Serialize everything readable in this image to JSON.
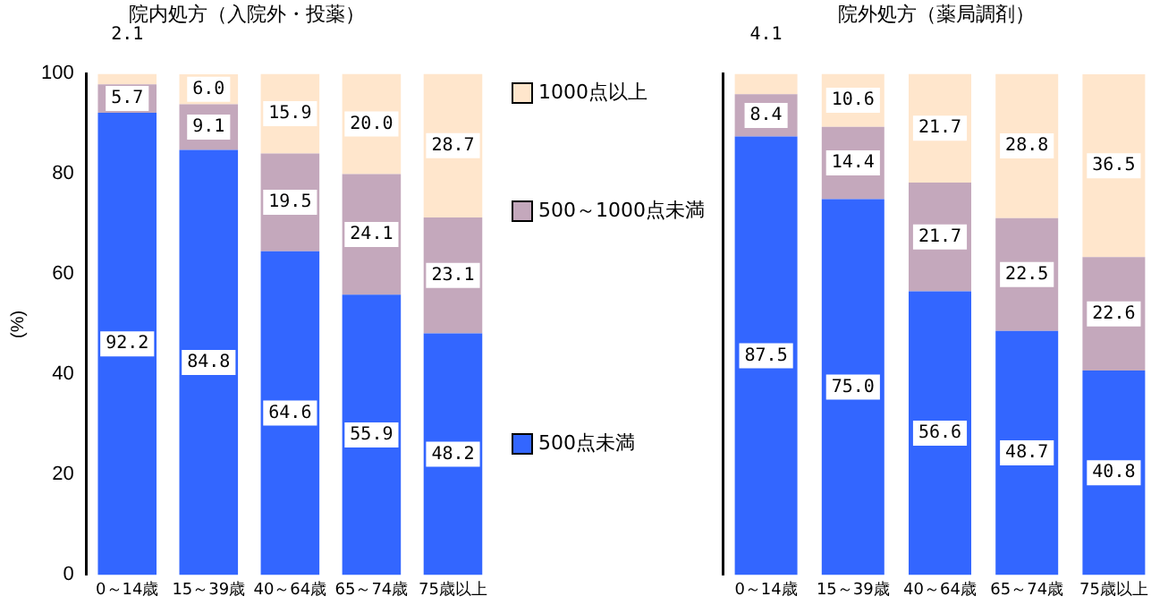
{
  "chart_data": [
    {
      "type": "bar",
      "title": "院内処方（入院外・投薬）",
      "ylabel": "(%)",
      "stacked": true,
      "categories": [
        "0～14歳",
        "15～39歳",
        "40～64歳",
        "65～74歳",
        "75歳以上"
      ],
      "series": [
        {
          "name": "500点未満",
          "color": "#3366ff",
          "values": [
            92.2,
            84.8,
            64.6,
            55.9,
            48.2
          ]
        },
        {
          "name": "500～1000点未満",
          "color": "#c4a8bc",
          "values": [
            5.7,
            9.1,
            19.5,
            24.1,
            23.1
          ]
        },
        {
          "name": "1000点以上",
          "color": "#ffe6cc",
          "values": [
            2.1,
            6.0,
            15.9,
            20.0,
            28.7
          ],
          "value_labels": [
            "2.1",
            "6.0",
            "15.9",
            "20.0",
            "28.7"
          ]
        }
      ],
      "ylim": [
        0,
        100
      ],
      "yticks": [
        0,
        20,
        40,
        60,
        80,
        100
      ],
      "data_labels": true,
      "legend": "right",
      "grid": false
    },
    {
      "type": "bar",
      "title": "院外処方（薬局調剤）",
      "stacked": true,
      "categories": [
        "0～14歳",
        "15～39歳",
        "40～64歳",
        "65～74歳",
        "75歳以上"
      ],
      "series": [
        {
          "color": "#3366ff",
          "values": [
            87.5,
            75.0,
            56.6,
            48.7,
            40.8
          ],
          "value_labels": [
            "87.5",
            "75.0",
            "56.6",
            "48.7",
            "40.8"
          ]
        },
        {
          "color": "#c4a8bc",
          "values": [
            8.4,
            14.4,
            21.7,
            22.5,
            22.6
          ]
        },
        {
          "color": "#ffe6cc",
          "values": [
            4.1,
            10.6,
            21.7,
            28.8,
            36.5
          ]
        }
      ],
      "ylim": [
        0,
        100
      ],
      "yticks": [
        0,
        20,
        40,
        60,
        80,
        100
      ],
      "data_labels": true,
      "tick_labels": "x",
      "grid": false
    }
  ]
}
